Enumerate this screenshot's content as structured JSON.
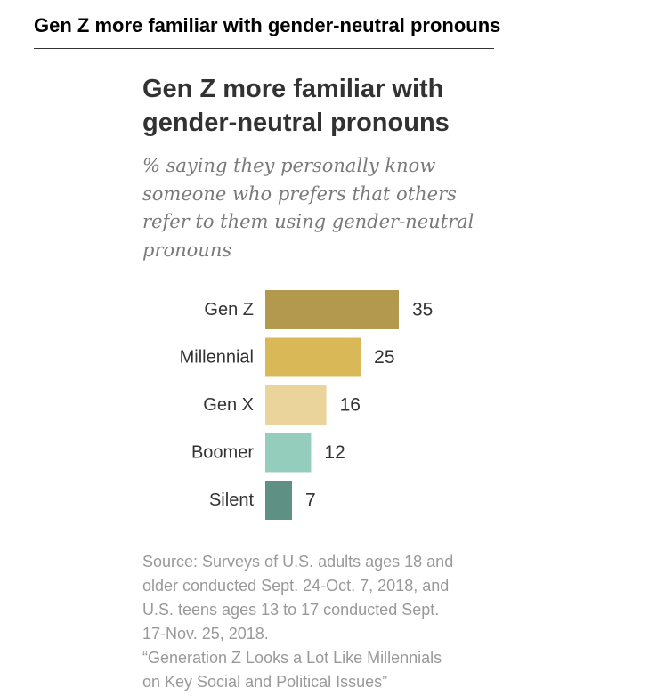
{
  "header": {
    "title": "Gen Z more familiar with gender-neutral pronouns"
  },
  "chart_data": {
    "type": "bar",
    "orientation": "horizontal",
    "title_lines": [
      "Gen Z more familiar with",
      "gender-neutral pronouns"
    ],
    "subtitle_lines": [
      "% saying they personally know",
      "someone who prefers that others",
      "refer to them using gender-neutral",
      "pronouns"
    ],
    "categories": [
      "Gen Z",
      "Millennial",
      "Gen X",
      "Boomer",
      "Silent"
    ],
    "values": [
      35,
      25,
      16,
      12,
      7
    ],
    "value_labels": [
      "35",
      "25",
      "16",
      "12",
      "7"
    ],
    "colors": [
      "#b3994e",
      "#d9b957",
      "#ebd49c",
      "#95cdbd",
      "#5e9184"
    ],
    "xlim": [
      0,
      35
    ],
    "xlabel": "",
    "ylabel": "",
    "grid": false
  },
  "source": {
    "lines": [
      "Source: Surveys of U.S. adults ages 18 and",
      "older conducted Sept. 24-Oct. 7, 2018, and",
      "U.S. teens ages 13 to 17 conducted Sept.",
      "17-Nov. 25, 2018.",
      "“Generation Z Looks a Lot Like Millennials",
      "on Key Social and Political Issues”"
    ]
  },
  "colors": {
    "title": "#323232",
    "subtitle": "#7a7a7a",
    "labels": "#333333",
    "source": "#999999"
  }
}
